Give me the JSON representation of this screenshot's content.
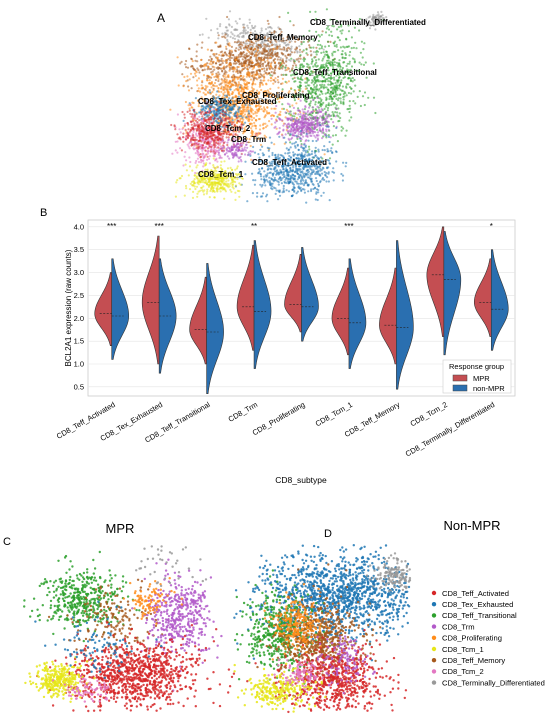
{
  "panels": {
    "a_label": "A",
    "b_label": "B",
    "c_label": "C",
    "d_label": "D",
    "c_title": "MPR",
    "d_title": "Non-MPR"
  },
  "umap_a": {
    "cluster_labels": [
      "CD8_Terminally_Differentiated",
      "CD8_Teff_Memory",
      "CD8_Teff_Transitional",
      "CD8_Proliferating",
      "CD8_Tex_Exhausted",
      "CD8_Tcm_2",
      "CD8_Trm",
      "CD8_Teff_Activated",
      "CD8_Tcm_1"
    ]
  },
  "colors": {
    "MPR": "#c44e52",
    "non-MPR": "#2a6fb0",
    "CD8_Teff_Activated": "#d62728",
    "CD8_Tex_Exhausted": "#1f77b4",
    "CD8_Teff_Transitional": "#2ca02c",
    "CD8_Trm": "#b259c9",
    "CD8_Proliferating": "#ff8c1a",
    "CD8_Tcm_1": "#e6e619",
    "CD8_Teff_Memory": "#a6581c",
    "CD8_Tcm_2": "#e377c2",
    "CD8_Terminally_Differentiated": "#999999"
  },
  "chart_data": {
    "type": "violin",
    "xlabel": "CD8_subtype",
    "ylabel": "BCL2A1 expression (raw counts)",
    "ylim": [
      0.3,
      4.15
    ],
    "yticks": [
      "0.5",
      "1.0",
      "1.5",
      "2.0",
      "2.5",
      "3.0",
      "3.5",
      "4.0"
    ],
    "grid": true,
    "legend_title": "Response group",
    "legend_placement": "bottom-right",
    "categories": [
      "CD8_Teff_Activated",
      "CD8_Tex_Exhausted",
      "CD8_Teff_Transitional",
      "CD8_Trm",
      "CD8_Proliferating",
      "CD8_Tcm_1",
      "CD8_Teff_Memory",
      "CD8_Tcm_2",
      "CD8_Terminally_Differentiated"
    ],
    "significance": [
      "***",
      "***",
      "",
      "**",
      "",
      "***",
      "",
      "",
      "*"
    ],
    "series": [
      {
        "name": "MPR",
        "min": [
          1.4,
          1.0,
          1.0,
          1.3,
          1.7,
          1.2,
          1.0,
          1.6,
          1.6
        ],
        "max": [
          3.0,
          3.8,
          2.9,
          3.6,
          3.4,
          3.1,
          3.1,
          4.0,
          3.3
        ],
        "median": [
          2.1,
          2.35,
          1.75,
          2.25,
          2.3,
          2.0,
          1.85,
          2.95,
          2.35
        ]
      },
      {
        "name": "non-MPR",
        "min": [
          1.1,
          0.8,
          0.35,
          0.9,
          1.5,
          0.9,
          0.45,
          1.2,
          1.3
        ],
        "max": [
          3.3,
          3.3,
          3.2,
          3.7,
          3.55,
          3.3,
          3.7,
          3.9,
          3.5
        ],
        "median": [
          2.05,
          2.05,
          1.7,
          2.15,
          2.25,
          1.9,
          1.8,
          2.85,
          2.2
        ]
      }
    ]
  },
  "scatter_legend": {
    "items": [
      "CD8_Teff_Activated",
      "CD8_Tex_Exhausted",
      "CD8_Teff_Transitional",
      "CD8_Trm",
      "CD8_Proliferating",
      "CD8_Tcm_1",
      "CD8_Teff_Memory",
      "CD8_Tcm_2",
      "CD8_Terminally_Differentiated"
    ]
  }
}
